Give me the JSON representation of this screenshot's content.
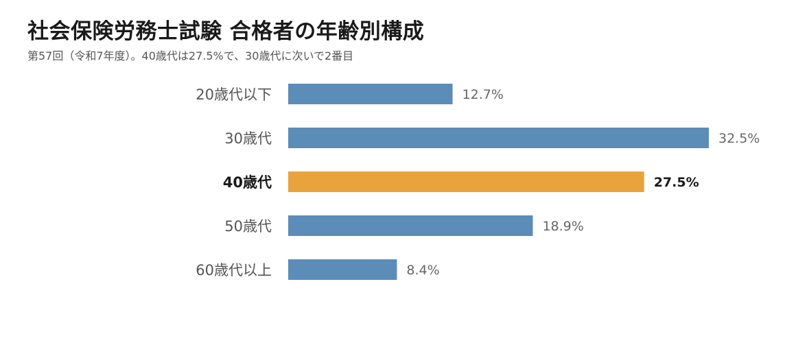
{
  "title": "社会保険労務士試験 合格者の年齢別構成",
  "subtitle": "第57回（令和7年度）。40歳代は27.5%で、30歳代に次いで2番目",
  "colors": {
    "default_bar": "#5b8db8",
    "highlight_bar": "#e8a33c"
  },
  "chart_data": {
    "type": "bar",
    "orientation": "horizontal",
    "categories": [
      "20歳代以下",
      "30歳代",
      "40歳代",
      "50歳代",
      "60歳代以上"
    ],
    "values": [
      12.7,
      32.5,
      27.5,
      18.9,
      8.4
    ],
    "value_labels": [
      "12.7%",
      "32.5%",
      "27.5%",
      "18.9%",
      "8.4%"
    ],
    "unit": "%",
    "highlight_index": 2,
    "xlim": [
      0,
      32.5
    ],
    "grid": false,
    "legend": "none"
  }
}
